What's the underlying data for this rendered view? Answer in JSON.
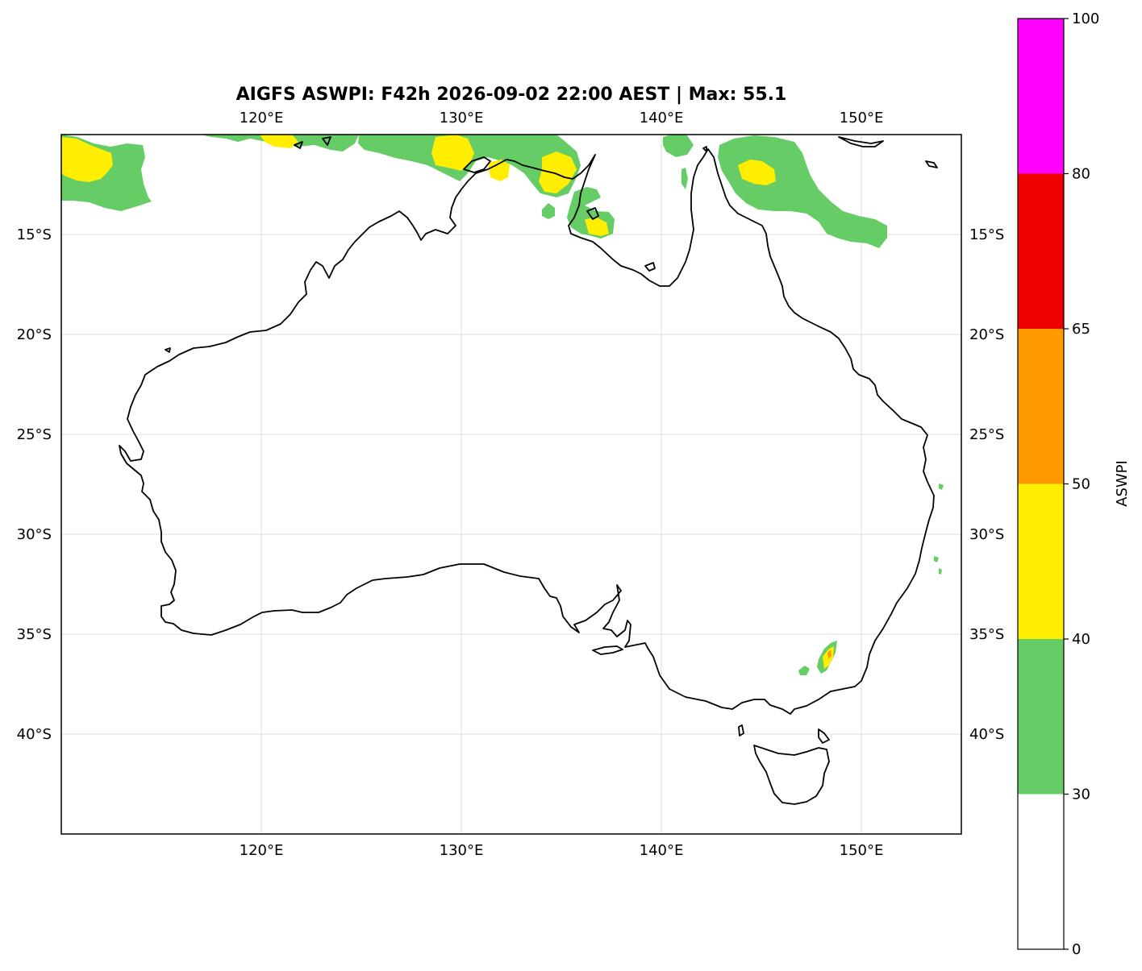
{
  "title": "AIGFS ASWPI: F42h 2026-09-02 22:00 AEST | Max: 55.1",
  "map": {
    "lon_range": [
      110,
      155
    ],
    "lat_range": [
      -45,
      -10
    ],
    "lon_ticks": [
      120,
      130,
      140,
      150
    ],
    "lat_ticks": [
      -15,
      -20,
      -25,
      -30,
      -35,
      -40
    ],
    "lon_tick_labels": [
      "120°E",
      "130°E",
      "140°E",
      "150°E"
    ],
    "lat_tick_labels": [
      "15°S",
      "20°S",
      "25°S",
      "30°S",
      "35°S",
      "40°S"
    ],
    "gridlines": true,
    "coastline_color": "#000000"
  },
  "colorbar": {
    "label": "ASWPI",
    "tick_labels": [
      "0",
      "30",
      "40",
      "50",
      "65",
      "80",
      "100"
    ],
    "levels": [
      0,
      30,
      40,
      50,
      65,
      80,
      100
    ],
    "colors": [
      "#ffffff",
      "#66cc66",
      "#ffee00",
      "#ff9900",
      "#ee0000",
      "#ff00ff"
    ]
  },
  "chart_data": {
    "type": "heatmap",
    "title": "AIGFS ASWPI: F42h 2026-09-02 22:00 AEST | Max: 55.1",
    "variable": "ASWPI",
    "max": 55.1,
    "xlim": [
      110,
      155
    ],
    "ylim": [
      -45,
      -10
    ],
    "x_ticks": [
      120,
      130,
      140,
      150
    ],
    "y_ticks": [
      -15,
      -20,
      -25,
      -30,
      -35,
      -40
    ],
    "levels": [
      0,
      30,
      40,
      50,
      65,
      80,
      100
    ]
  }
}
